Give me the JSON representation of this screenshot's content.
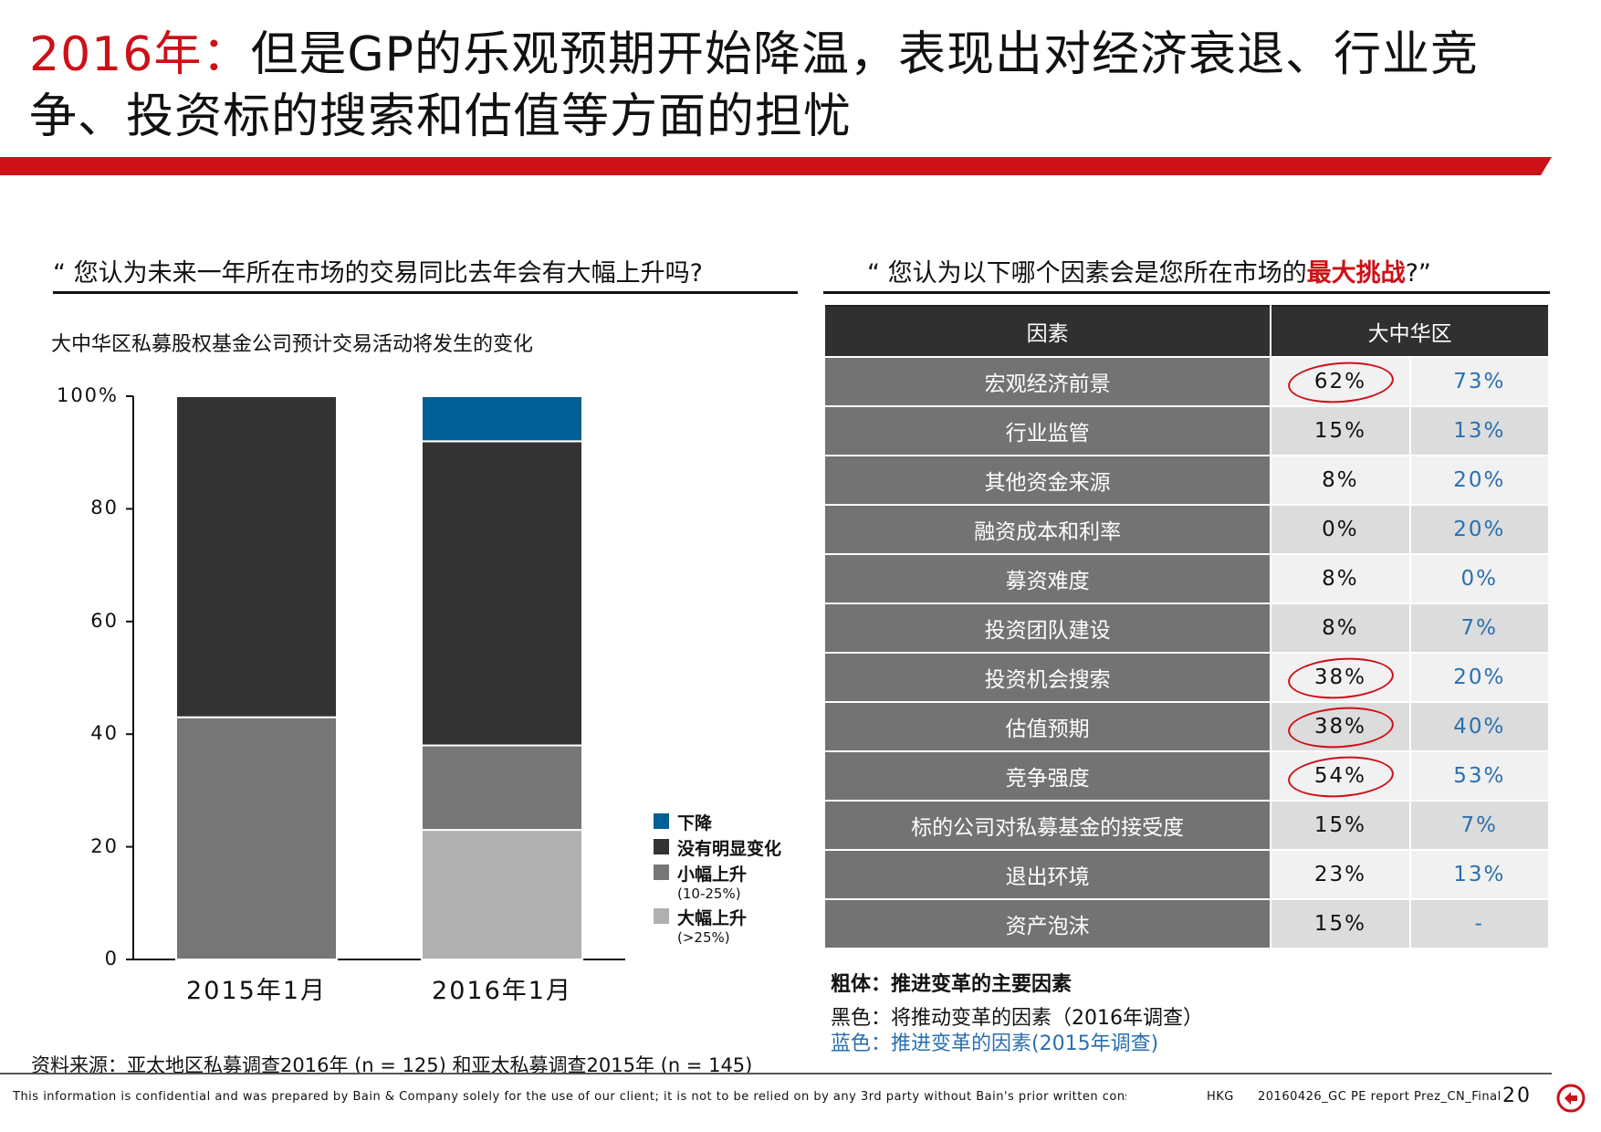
{
  "title": {
    "year": "2016年：",
    "text": "但是GP的乐观预期开始降温，表现出对经济衰退、行业竞争、投资标的搜索和估值等方面的担忧"
  },
  "left": {
    "question": "“ 您认为未来一年所在市场的交易同比去年会有大幅上升吗?",
    "subtitle": "大中华区私募股权基金公司预计交易活动将发生的变化"
  },
  "chart_data": {
    "type": "bar",
    "stacked": true,
    "categories": [
      "2015年1月",
      "2016年1月"
    ],
    "series": [
      {
        "name": "大幅上升",
        "sub": "(>25%)",
        "color": "#b0b0b0",
        "values": [
          0,
          23
        ]
      },
      {
        "name": "小幅上升",
        "sub": "(10-25%)",
        "color": "#767676",
        "values": [
          43,
          15
        ]
      },
      {
        "name": "没有明显变化",
        "sub": "",
        "color": "#333333",
        "values": [
          57,
          54
        ]
      },
      {
        "name": "下降",
        "sub": "",
        "color": "#006096",
        "values": [
          0,
          8
        ]
      }
    ],
    "ylim": [
      0,
      100
    ],
    "yticks": [
      "0",
      "20",
      "40",
      "60",
      "80",
      "100%"
    ],
    "ytick_values": [
      0,
      20,
      40,
      60,
      80,
      100
    ],
    "legend_position": "right",
    "title": "",
    "xlabel": "",
    "ylabel": ""
  },
  "right": {
    "question_pre": "“ 您认为以下哪个因素会是您所在市场的",
    "question_red": "最大挑战",
    "question_post": "?”",
    "header_factor": "因素",
    "header_region": "大中华区",
    "rows": [
      {
        "factor": "宏观经济前景",
        "v2016": "62%",
        "v2015": "73%",
        "circled": true
      },
      {
        "factor": "行业监管",
        "v2016": "15%",
        "v2015": "13%",
        "circled": false
      },
      {
        "factor": "其他资金来源",
        "v2016": "8%",
        "v2015": "20%",
        "circled": false
      },
      {
        "factor": "融资成本和利率",
        "v2016": "0%",
        "v2015": "20%",
        "circled": false
      },
      {
        "factor": "募资难度",
        "v2016": "8%",
        "v2015": "0%",
        "circled": false
      },
      {
        "factor": "投资团队建设",
        "v2016": "8%",
        "v2015": "7%",
        "circled": false
      },
      {
        "factor": "投资机会搜索",
        "v2016": "38%",
        "v2015": "20%",
        "circled": true
      },
      {
        "factor": "估值预期",
        "v2016": "38%",
        "v2015": "40%",
        "circled": true
      },
      {
        "factor": "竞争强度",
        "v2016": "54%",
        "v2015": "53%",
        "circled": true
      },
      {
        "factor": "标的公司对私募基金的接受度",
        "v2016": "15%",
        "v2015": "7%",
        "circled": false
      },
      {
        "factor": "退出环境",
        "v2016": "23%",
        "v2015": "13%",
        "circled": false
      },
      {
        "factor": "资产泡沫",
        "v2016": "15%",
        "v2015": "-",
        "circled": false
      }
    ],
    "notes": {
      "bold": "粗体：推进变革的主要因素",
      "black": "黑色：将推动变革的因素（2016年调查）",
      "blue": "蓝色：推进变革的因素(2015年调查)"
    }
  },
  "source": "资料来源：亚太地区私募调查2016年 (n = 125) 和亚太私募调查2015年 (n = 145)",
  "footer": {
    "confidential": "This information is confidential and was prepared by Bain & Company solely for the use of our client; it is not to be relied on by any 3rd party without Bain's prior written consent",
    "office": "HKG",
    "file": "20160426_GC PE report Prez_CN_Final",
    "page": "20"
  },
  "colors": {
    "accent_red": "#cc1118",
    "blue_text": "#2a6fb0"
  }
}
